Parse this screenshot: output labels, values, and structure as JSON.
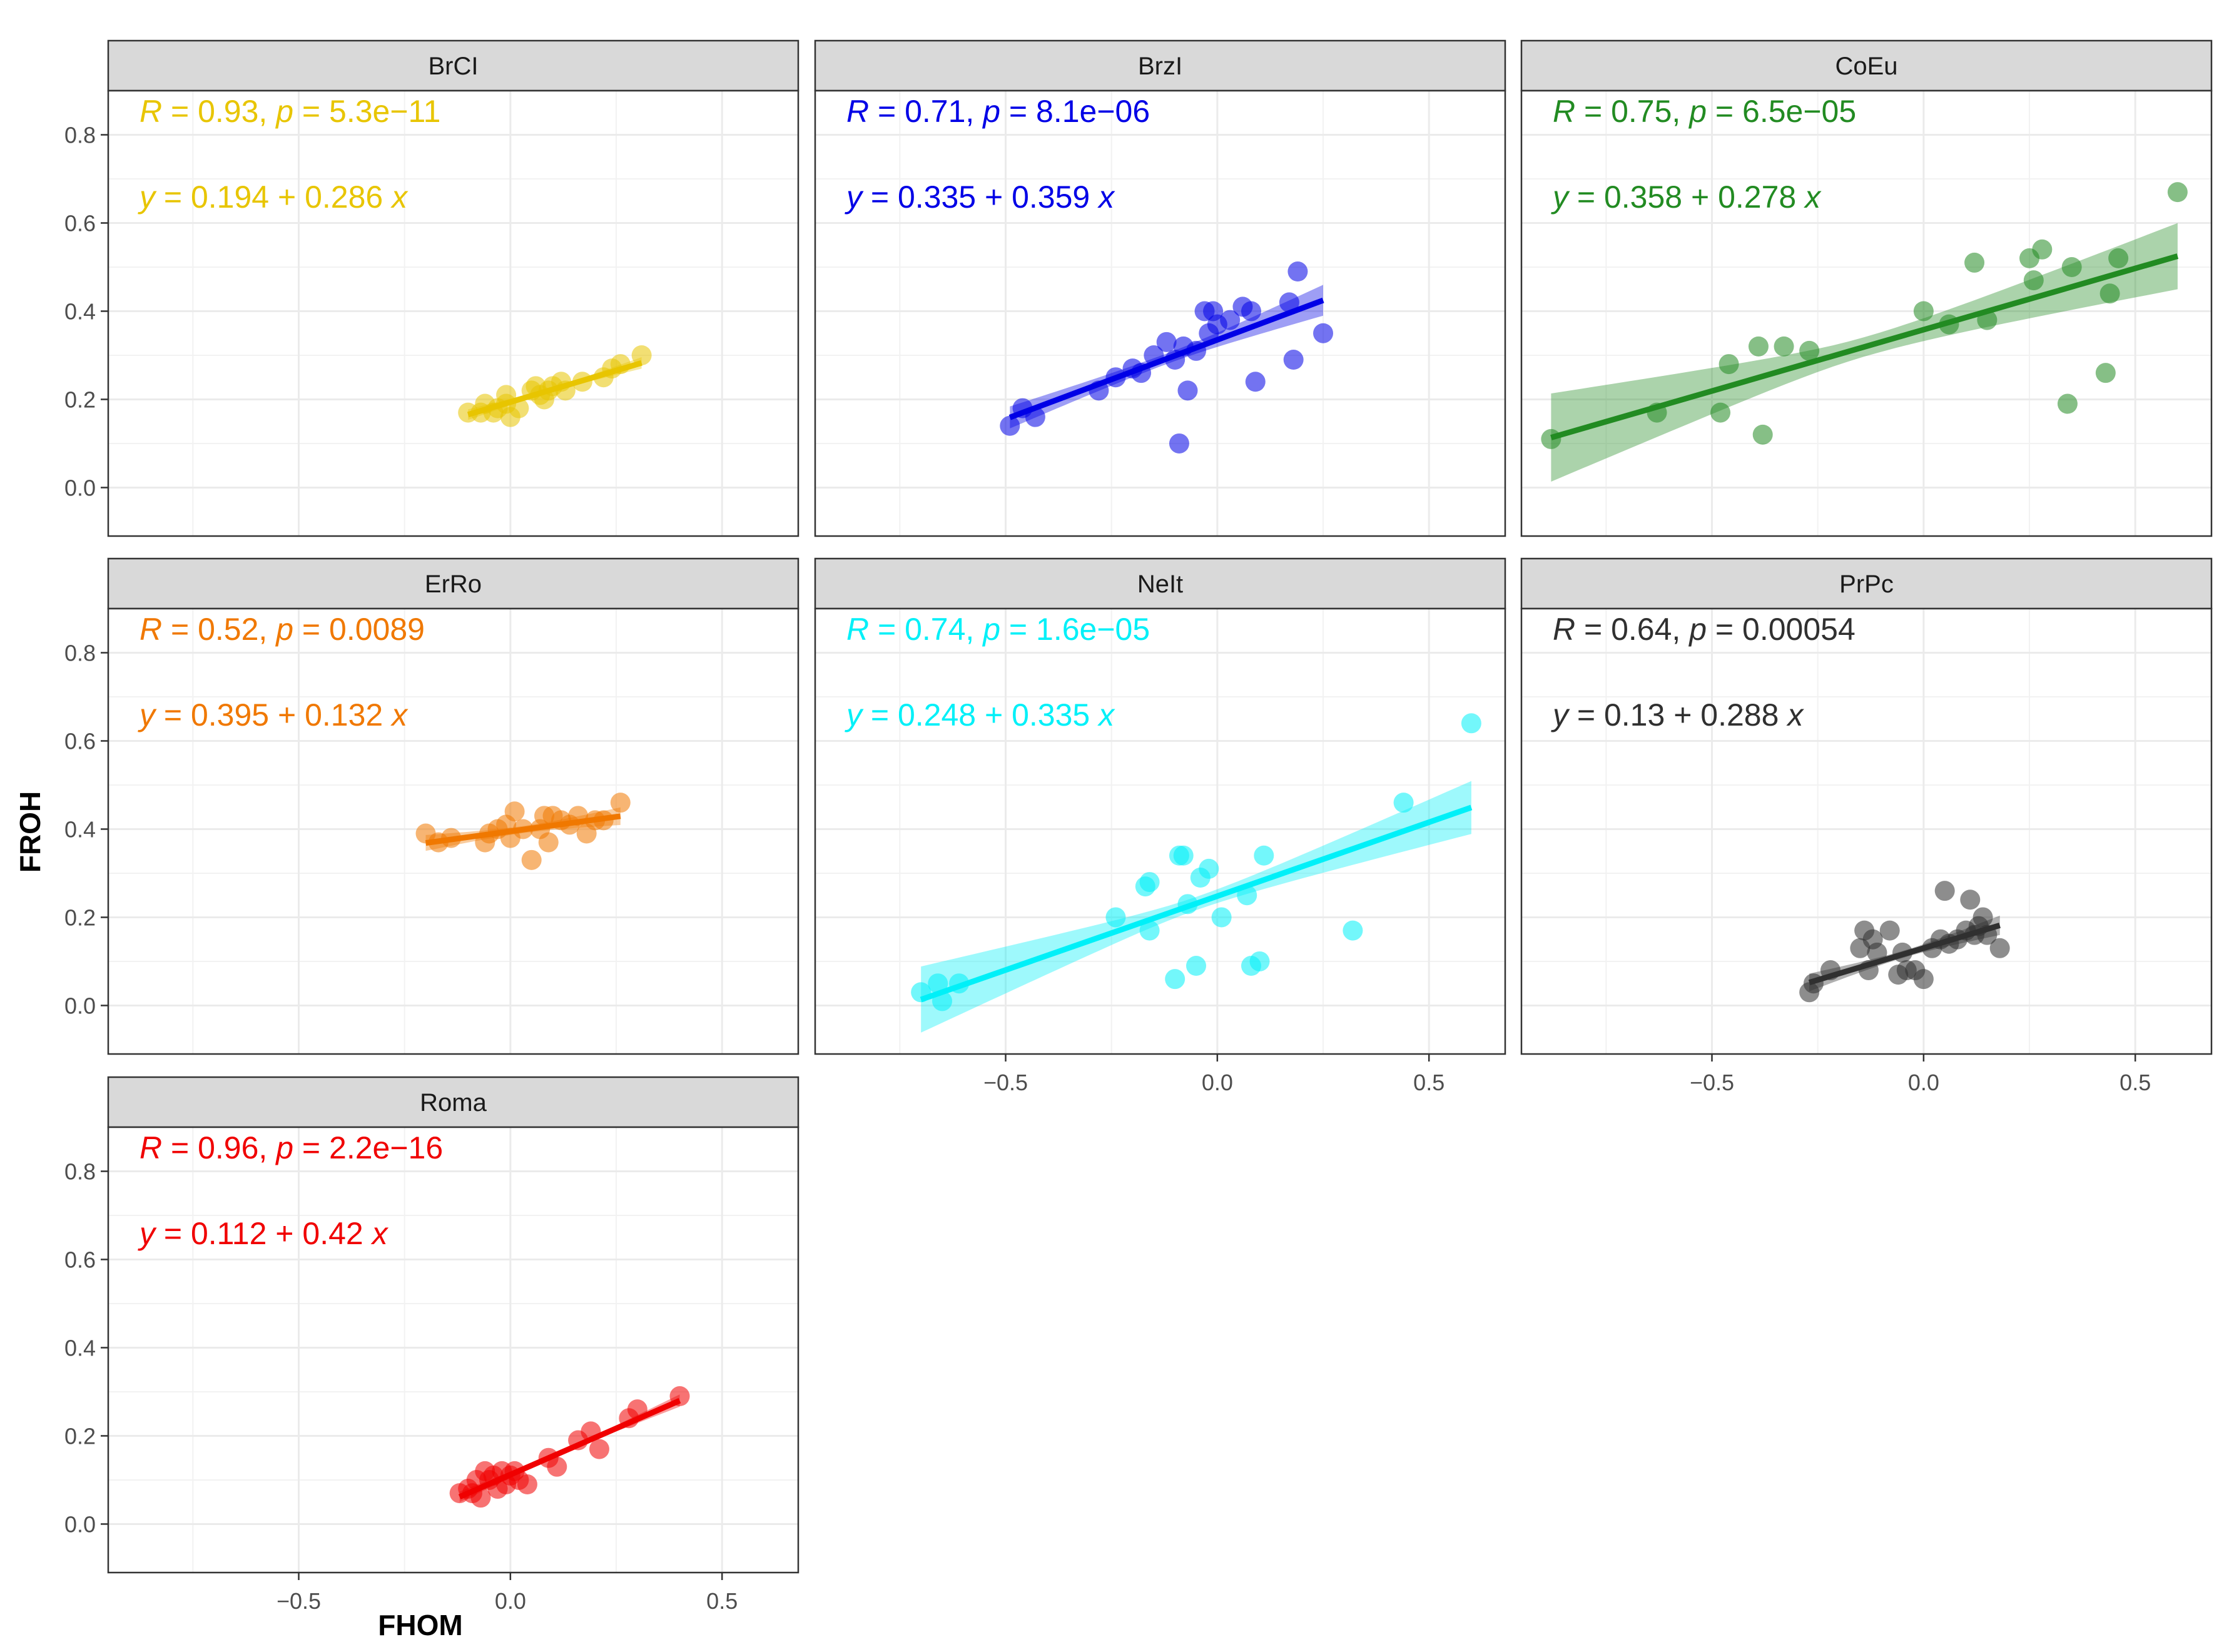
{
  "figure": {
    "xlabel": "FHOM",
    "ylabel": "FROH",
    "x_range": [
      -0.95,
      0.68
    ],
    "y_range": [
      -0.11,
      0.9
    ],
    "x_ticks": [
      -0.5,
      0.0,
      0.5
    ],
    "x_tick_labels": [
      "−0.5",
      "0.0",
      "0.5"
    ],
    "y_ticks": [
      0.0,
      0.2,
      0.4,
      0.6,
      0.8
    ],
    "y_tick_labels": [
      "0.0",
      "0.2",
      "0.4",
      "0.6",
      "0.8"
    ]
  },
  "chart_data": [
    {
      "type": "scatter",
      "title": "BrCI",
      "color": "#E8C500",
      "ci": [
        0.012,
        0.005,
        0.013
      ],
      "xlim": [
        -0.95,
        0.68
      ],
      "ylim": [
        -0.11,
        0.9
      ],
      "stats": {
        "R_label": "R",
        "R": "0.93",
        "p_label": "p",
        "p": "5.3e−11"
      },
      "equation": {
        "y": "y",
        "intercept": "0.194",
        "slope": "0.286",
        "x": "x"
      },
      "fit": {
        "intercept": 0.194,
        "slope": 0.286,
        "x_min": -0.1,
        "x_max": 0.31
      },
      "x": [
        -0.1,
        -0.07,
        -0.06,
        -0.04,
        -0.03,
        -0.01,
        -0.01,
        0.0,
        0.02,
        0.05,
        0.06,
        0.07,
        0.08,
        0.09,
        0.1,
        0.12,
        0.13,
        0.17,
        0.22,
        0.24,
        0.26,
        0.31
      ],
      "y": [
        0.17,
        0.17,
        0.19,
        0.17,
        0.18,
        0.21,
        0.19,
        0.16,
        0.18,
        0.22,
        0.23,
        0.21,
        0.2,
        0.22,
        0.23,
        0.24,
        0.22,
        0.24,
        0.25,
        0.27,
        0.28,
        0.3
      ]
    },
    {
      "type": "scatter",
      "title": "BrzI",
      "color": "#0000E6",
      "ci": [
        0.025,
        0.012,
        0.035
      ],
      "xlim": [
        -0.95,
        0.68
      ],
      "ylim": [
        -0.11,
        0.9
      ],
      "stats": {
        "R_label": "R",
        "R": "0.71",
        "p_label": "p",
        "p": "8.1e−06"
      },
      "equation": {
        "y": "y",
        "intercept": "0.335",
        "slope": "0.359",
        "x": "x"
      },
      "fit": {
        "intercept": 0.335,
        "slope": 0.359,
        "x_min": -0.49,
        "x_max": 0.25
      },
      "x": [
        -0.49,
        -0.46,
        -0.43,
        -0.28,
        -0.24,
        -0.2,
        -0.18,
        -0.15,
        -0.12,
        -0.1,
        -0.09,
        -0.08,
        -0.07,
        -0.05,
        -0.03,
        -0.02,
        -0.01,
        0.0,
        0.03,
        0.06,
        0.08,
        0.09,
        0.17,
        0.18,
        0.19,
        0.25
      ],
      "y": [
        0.14,
        0.18,
        0.16,
        0.22,
        0.25,
        0.27,
        0.26,
        0.3,
        0.33,
        0.29,
        0.1,
        0.32,
        0.22,
        0.31,
        0.4,
        0.35,
        0.4,
        0.37,
        0.38,
        0.41,
        0.4,
        0.24,
        0.42,
        0.29,
        0.49,
        0.35
      ]
    },
    {
      "type": "scatter",
      "title": "CoEu",
      "color": "#228B22",
      "ci": [
        0.1,
        0.022,
        0.075
      ],
      "xlim": [
        -0.95,
        0.68
      ],
      "ylim": [
        -0.11,
        0.9
      ],
      "stats": {
        "R_label": "R",
        "R": "0.75",
        "p_label": "p",
        "p": "6.5e−05"
      },
      "equation": {
        "y": "y",
        "intercept": "0.358",
        "slope": "0.278",
        "x": "x"
      },
      "fit": {
        "intercept": 0.358,
        "slope": 0.278,
        "x_min": -0.88,
        "x_max": 0.6
      },
      "x": [
        -0.88,
        -0.63,
        -0.48,
        -0.46,
        -0.39,
        -0.38,
        -0.33,
        -0.27,
        0.0,
        0.06,
        0.12,
        0.15,
        0.25,
        0.26,
        0.28,
        0.34,
        0.35,
        0.43,
        0.44,
        0.46,
        0.6
      ],
      "y": [
        0.11,
        0.17,
        0.17,
        0.28,
        0.32,
        0.12,
        0.32,
        0.31,
        0.4,
        0.37,
        0.51,
        0.38,
        0.52,
        0.47,
        0.54,
        0.19,
        0.5,
        0.26,
        0.44,
        0.52,
        0.67
      ]
    },
    {
      "type": "scatter",
      "title": "ErRo",
      "color": "#F07800",
      "ci": [
        0.018,
        0.008,
        0.02
      ],
      "xlim": [
        -0.95,
        0.68
      ],
      "ylim": [
        -0.11,
        0.9
      ],
      "stats": {
        "R_label": "R",
        "R": "0.52",
        "p_label": "p",
        "p": "0.0089"
      },
      "equation": {
        "y": "y",
        "intercept": "0.395",
        "slope": "0.132",
        "x": "x"
      },
      "fit": {
        "intercept": 0.395,
        "slope": 0.132,
        "x_min": -0.2,
        "x_max": 0.26
      },
      "x": [
        -0.2,
        -0.17,
        -0.14,
        -0.06,
        -0.05,
        -0.03,
        -0.01,
        0.0,
        0.01,
        0.03,
        0.05,
        0.07,
        0.08,
        0.09,
        0.1,
        0.12,
        0.14,
        0.16,
        0.18,
        0.2,
        0.22,
        0.26
      ],
      "y": [
        0.39,
        0.37,
        0.38,
        0.37,
        0.39,
        0.4,
        0.41,
        0.38,
        0.44,
        0.4,
        0.33,
        0.4,
        0.43,
        0.37,
        0.43,
        0.42,
        0.41,
        0.43,
        0.39,
        0.42,
        0.42,
        0.46
      ]
    },
    {
      "type": "scatter",
      "title": "NeIt",
      "color": "#00F0F8",
      "ci": [
        0.075,
        0.015,
        0.06
      ],
      "xlim": [
        -0.95,
        0.68
      ],
      "ylim": [
        -0.11,
        0.9
      ],
      "stats": {
        "R_label": "R",
        "R": "0.74",
        "p_label": "p",
        "p": "1.6e−05"
      },
      "equation": {
        "y": "y",
        "intercept": "0.248",
        "slope": "0.335",
        "x": "x"
      },
      "fit": {
        "intercept": 0.248,
        "slope": 0.335,
        "x_min": -0.7,
        "x_max": 0.6
      },
      "x": [
        -0.7,
        -0.66,
        -0.65,
        -0.61,
        -0.24,
        -0.17,
        -0.16,
        -0.16,
        -0.1,
        -0.09,
        -0.08,
        -0.07,
        -0.05,
        -0.04,
        -0.02,
        0.01,
        0.07,
        0.08,
        0.1,
        0.11,
        0.32,
        0.44,
        0.6
      ],
      "y": [
        0.03,
        0.05,
        0.01,
        0.05,
        0.2,
        0.27,
        0.28,
        0.17,
        0.06,
        0.34,
        0.34,
        0.23,
        0.09,
        0.29,
        0.31,
        0.2,
        0.25,
        0.09,
        0.1,
        0.34,
        0.17,
        0.46,
        0.64
      ]
    },
    {
      "type": "scatter",
      "title": "PrPc",
      "color": "#303030",
      "ci": [
        0.02,
        0.008,
        0.022
      ],
      "xlim": [
        -0.95,
        0.68
      ],
      "ylim": [
        -0.11,
        0.9
      ],
      "stats": {
        "R_label": "R",
        "R": "0.64",
        "p_label": "p",
        "p": "0.00054"
      },
      "equation": {
        "y": "y",
        "intercept": "0.13",
        "slope": "0.288",
        "x": "x"
      },
      "fit": {
        "intercept": 0.13,
        "slope": 0.288,
        "x_min": -0.27,
        "x_max": 0.18
      },
      "x": [
        -0.27,
        -0.26,
        -0.22,
        -0.15,
        -0.14,
        -0.13,
        -0.12,
        -0.11,
        -0.08,
        -0.06,
        -0.05,
        -0.04,
        -0.02,
        0.0,
        0.02,
        0.04,
        0.05,
        0.06,
        0.08,
        0.1,
        0.11,
        0.12,
        0.13,
        0.14,
        0.15,
        0.18
      ],
      "y": [
        0.03,
        0.05,
        0.08,
        0.13,
        0.17,
        0.08,
        0.15,
        0.12,
        0.17,
        0.07,
        0.12,
        0.08,
        0.08,
        0.06,
        0.13,
        0.15,
        0.26,
        0.14,
        0.15,
        0.17,
        0.24,
        0.16,
        0.18,
        0.2,
        0.16,
        0.13
      ]
    },
    {
      "type": "scatter",
      "title": "Roma",
      "color": "#F00000",
      "ci": [
        0.012,
        0.004,
        0.014
      ],
      "xlim": [
        -0.95,
        0.68
      ],
      "ylim": [
        -0.11,
        0.9
      ],
      "stats": {
        "R_label": "R",
        "R": "0.96",
        "p_label": "p",
        "p": "2.2e−16"
      },
      "equation": {
        "y": "y",
        "intercept": "0.112",
        "slope": "0.42",
        "x": "x"
      },
      "fit": {
        "intercept": 0.112,
        "slope": 0.42,
        "x_min": -0.12,
        "x_max": 0.4
      },
      "x": [
        -0.12,
        -0.1,
        -0.09,
        -0.08,
        -0.07,
        -0.06,
        -0.05,
        -0.04,
        -0.03,
        -0.02,
        -0.01,
        0.0,
        0.01,
        0.02,
        0.04,
        0.09,
        0.11,
        0.16,
        0.19,
        0.21,
        0.28,
        0.3,
        0.4
      ],
      "y": [
        0.07,
        0.08,
        0.07,
        0.1,
        0.06,
        0.12,
        0.1,
        0.11,
        0.08,
        0.12,
        0.09,
        0.11,
        0.12,
        0.1,
        0.09,
        0.15,
        0.13,
        0.19,
        0.21,
        0.17,
        0.24,
        0.26,
        0.29
      ]
    }
  ]
}
